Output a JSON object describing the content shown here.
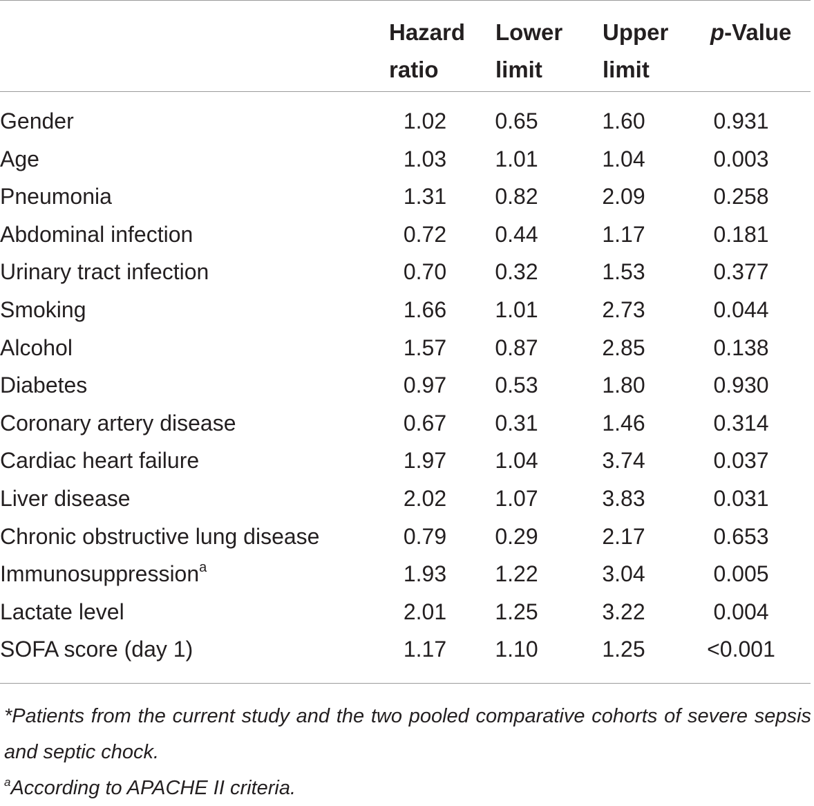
{
  "header": {
    "col1_line1": "Hazard",
    "col1_line2": "ratio",
    "col2_line1": "Lower",
    "col2_line2": "limit",
    "col3_line1": "Upper",
    "col3_line2": "limit",
    "col4_italic": "p",
    "col4_rest": "-Value"
  },
  "rows": [
    {
      "label": "Gender",
      "sup": "",
      "hr": "1.02",
      "lower": "0.65",
      "upper": "1.60",
      "p": "0.931"
    },
    {
      "label": "Age",
      "sup": "",
      "hr": "1.03",
      "lower": "1.01",
      "upper": "1.04",
      "p": "0.003"
    },
    {
      "label": "Pneumonia",
      "sup": "",
      "hr": "1.31",
      "lower": "0.82",
      "upper": "2.09",
      "p": "0.258"
    },
    {
      "label": "Abdominal infection",
      "sup": "",
      "hr": "0.72",
      "lower": "0.44",
      "upper": "1.17",
      "p": "0.181"
    },
    {
      "label": "Urinary tract infection",
      "sup": "",
      "hr": "0.70",
      "lower": "0.32",
      "upper": "1.53",
      "p": "0.377"
    },
    {
      "label": "Smoking",
      "sup": "",
      "hr": "1.66",
      "lower": "1.01",
      "upper": "2.73",
      "p": "0.044"
    },
    {
      "label": "Alcohol",
      "sup": "",
      "hr": "1.57",
      "lower": "0.87",
      "upper": "2.85",
      "p": "0.138"
    },
    {
      "label": "Diabetes",
      "sup": "",
      "hr": "0.97",
      "lower": "0.53",
      "upper": "1.80",
      "p": "0.930"
    },
    {
      "label": "Coronary artery disease",
      "sup": "",
      "hr": "0.67",
      "lower": "0.31",
      "upper": "1.46",
      "p": "0.314"
    },
    {
      "label": "Cardiac heart failure",
      "sup": "",
      "hr": "1.97",
      "lower": "1.04",
      "upper": "3.74",
      "p": "0.037"
    },
    {
      "label": "Liver disease",
      "sup": "",
      "hr": "2.02",
      "lower": "1.07",
      "upper": "3.83",
      "p": "0.031"
    },
    {
      "label": "Chronic obstructive lung disease",
      "sup": "",
      "hr": "0.79",
      "lower": "0.29",
      "upper": "2.17",
      "p": "0.653"
    },
    {
      "label": "Immunosuppression",
      "sup": "a",
      "hr": "1.93",
      "lower": "1.22",
      "upper": "3.04",
      "p": "0.005"
    },
    {
      "label": "Lactate level",
      "sup": "",
      "hr": "2.01",
      "lower": "1.25",
      "upper": "3.22",
      "p": "0.004"
    },
    {
      "label": "SOFA score (day 1)",
      "sup": "",
      "hr": "1.17",
      "lower": "1.10",
      "upper": "1.25",
      "p": "<0.001"
    }
  ],
  "footnotes": {
    "note1": "*Patients from the current study and the two pooled comparative cohorts of severe sepsis and septic chock.",
    "note2_marker": "a",
    "note2_text": "According to APACHE II criteria."
  }
}
